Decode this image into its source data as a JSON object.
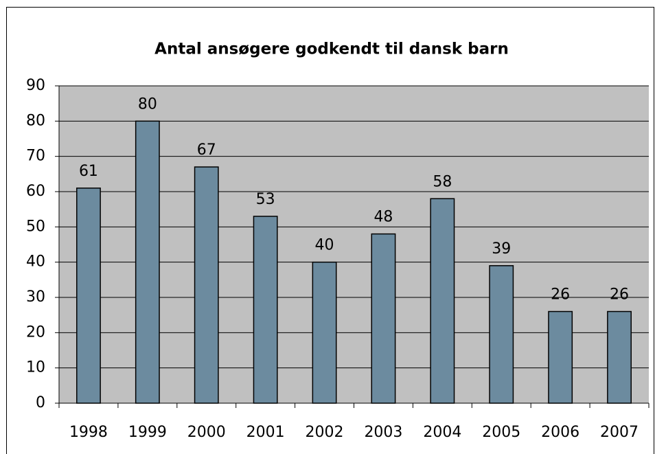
{
  "chart_data": {
    "type": "bar",
    "title": "Antal ansøgere godkendt til dansk barn",
    "categories": [
      "1998",
      "1999",
      "2000",
      "2001",
      "2002",
      "2003",
      "2004",
      "2005",
      "2006",
      "2007"
    ],
    "values": [
      61,
      80,
      67,
      53,
      40,
      48,
      58,
      39,
      26,
      26
    ],
    "color": "#6c8b9f",
    "ylim": [
      0,
      90
    ],
    "yticks": [
      0,
      10,
      20,
      30,
      40,
      50,
      60,
      70,
      80,
      90
    ],
    "grid": true
  }
}
